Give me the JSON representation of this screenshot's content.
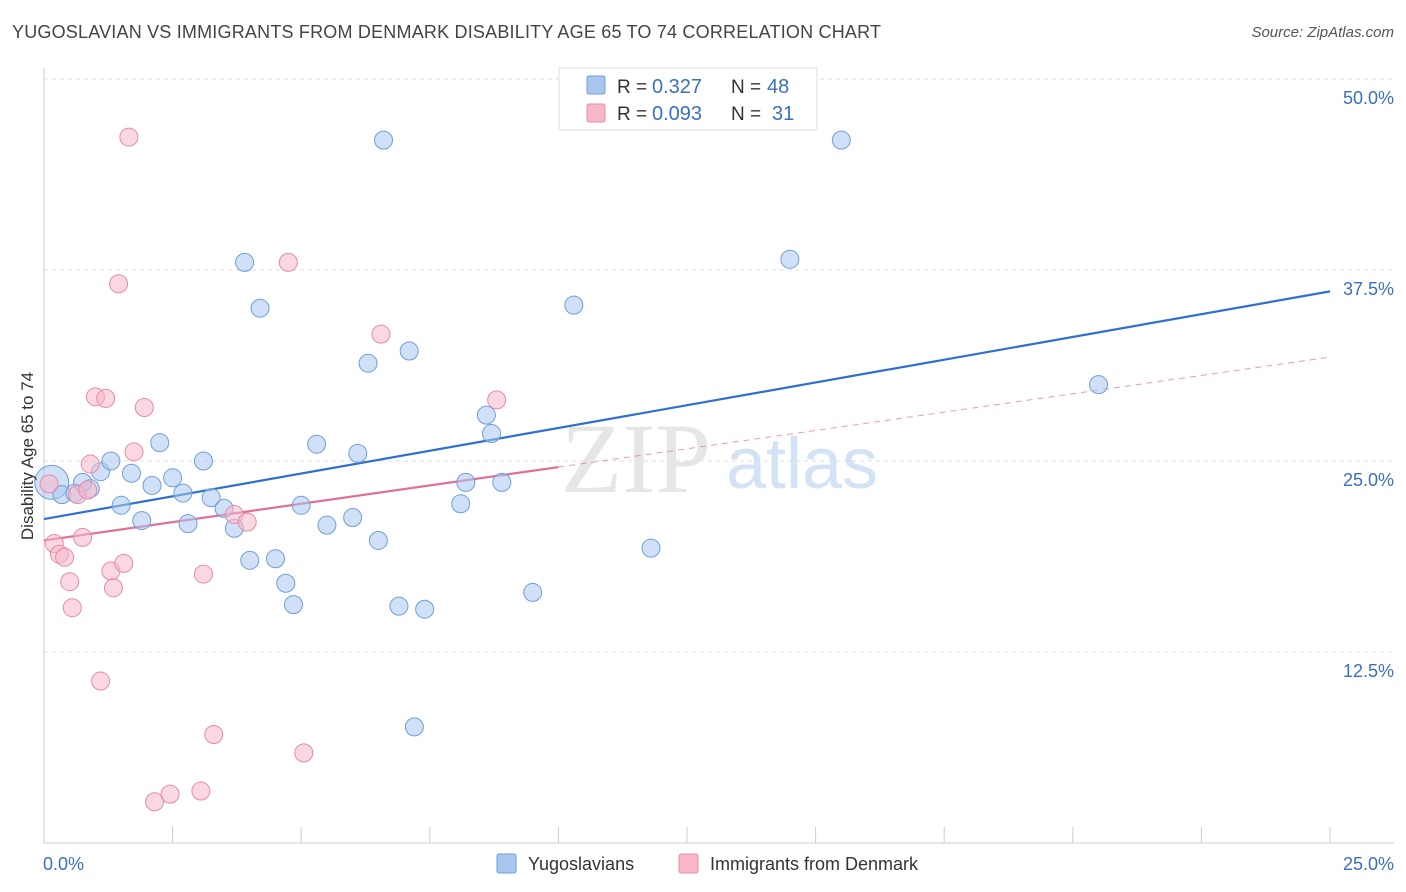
{
  "title": "YUGOSLAVIAN VS IMMIGRANTS FROM DENMARK DISABILITY AGE 65 TO 74 CORRELATION CHART",
  "source": "Source: ZipAtlas.com",
  "watermark": {
    "zip": "ZIP",
    "atlas": "atlas"
  },
  "stats": {
    "r_label": "R =",
    "n_label": "N =",
    "rows": [
      {
        "r": "0.327",
        "n": "48",
        "color": "#a9c7ee",
        "stroke": "#6f9fd8"
      },
      {
        "r": "0.093",
        "n": "31",
        "color": "#f6b8c9",
        "stroke": "#e88aa6"
      }
    ]
  },
  "chart_data": {
    "type": "scatter",
    "xlabel": "",
    "ylabel": "Disability Age 65 to 74",
    "xlim": [
      0,
      25
    ],
    "ylim": [
      0,
      50
    ],
    "x_tick_labels": [
      "0.0%",
      "25.0%"
    ],
    "y_ticks": [
      12.5,
      25.0,
      37.5,
      50.0
    ],
    "y_tick_labels": [
      "12.5%",
      "25.0%",
      "37.5%",
      "50.0%"
    ],
    "grid": true,
    "legend_position": "bottom-center",
    "series": [
      {
        "name": "Yugoslavians",
        "color": "#a9c7ee",
        "stroke": "#6f9fd8",
        "line_color": "#2f6fd0",
        "trend": {
          "x": [
            0,
            25
          ],
          "y": [
            21.2,
            36.1
          ],
          "style": "solid"
        },
        "points": [
          [
            0.15,
            23.6
          ],
          [
            0.35,
            22.8
          ],
          [
            0.6,
            22.9
          ],
          [
            0.9,
            23.2
          ],
          [
            1.1,
            24.3
          ],
          [
            1.3,
            25.0
          ],
          [
            0.75,
            23.6
          ],
          [
            1.5,
            22.1
          ],
          [
            1.7,
            24.2
          ],
          [
            1.9,
            21.1
          ],
          [
            2.1,
            23.4
          ],
          [
            2.25,
            26.2
          ],
          [
            2.5,
            23.9
          ],
          [
            2.7,
            22.9
          ],
          [
            2.8,
            20.9
          ],
          [
            3.1,
            25.0
          ],
          [
            3.25,
            22.6
          ],
          [
            3.5,
            21.9
          ],
          [
            3.7,
            20.6
          ],
          [
            3.9,
            38.0
          ],
          [
            4.0,
            18.5
          ],
          [
            4.2,
            35.0
          ],
          [
            4.5,
            18.6
          ],
          [
            4.7,
            17.0
          ],
          [
            4.85,
            15.6
          ],
          [
            5.0,
            22.1
          ],
          [
            5.3,
            26.1
          ],
          [
            5.5,
            20.8
          ],
          [
            6.0,
            21.3
          ],
          [
            6.1,
            25.5
          ],
          [
            6.3,
            31.4
          ],
          [
            6.5,
            19.8
          ],
          [
            6.6,
            46.0
          ],
          [
            6.9,
            15.5
          ],
          [
            7.1,
            32.2
          ],
          [
            7.2,
            7.6
          ],
          [
            7.4,
            15.3
          ],
          [
            8.1,
            22.2
          ],
          [
            8.2,
            23.6
          ],
          [
            8.6,
            28.0
          ],
          [
            8.7,
            26.8
          ],
          [
            8.9,
            23.6
          ],
          [
            9.5,
            16.4
          ],
          [
            10.3,
            35.2
          ],
          [
            11.8,
            19.3
          ],
          [
            14.5,
            38.2
          ],
          [
            15.5,
            46.0
          ],
          [
            20.5,
            30.0
          ]
        ]
      },
      {
        "name": "Immigrants from Denmark",
        "color": "#f6b8c9",
        "stroke": "#e88aa6",
        "line_color": "#e0709a",
        "trend": {
          "x": [
            0,
            10
          ],
          "y": [
            19.8,
            24.6
          ],
          "style": "solid"
        },
        "trend_extension": {
          "x": [
            10,
            25
          ],
          "y": [
            24.6,
            31.8
          ],
          "style": "dashed"
        },
        "points": [
          [
            0.1,
            23.5
          ],
          [
            0.2,
            19.6
          ],
          [
            0.3,
            18.9
          ],
          [
            0.4,
            18.7
          ],
          [
            0.5,
            17.1
          ],
          [
            0.55,
            15.4
          ],
          [
            0.65,
            22.8
          ],
          [
            0.75,
            20.0
          ],
          [
            0.85,
            23.1
          ],
          [
            0.9,
            24.8
          ],
          [
            1.0,
            29.2
          ],
          [
            1.1,
            10.6
          ],
          [
            1.2,
            29.1
          ],
          [
            1.3,
            17.8
          ],
          [
            1.35,
            16.7
          ],
          [
            1.45,
            36.6
          ],
          [
            1.55,
            18.3
          ],
          [
            1.65,
            46.2
          ],
          [
            1.75,
            25.6
          ],
          [
            1.95,
            28.5
          ],
          [
            2.15,
            2.7
          ],
          [
            2.45,
            3.2
          ],
          [
            3.05,
            3.4
          ],
          [
            3.1,
            17.6
          ],
          [
            3.3,
            7.1
          ],
          [
            3.7,
            21.5
          ],
          [
            3.95,
            21.0
          ],
          [
            4.75,
            38.0
          ],
          [
            5.05,
            5.9
          ],
          [
            6.55,
            33.3
          ],
          [
            8.8,
            29.0
          ]
        ]
      }
    ]
  }
}
